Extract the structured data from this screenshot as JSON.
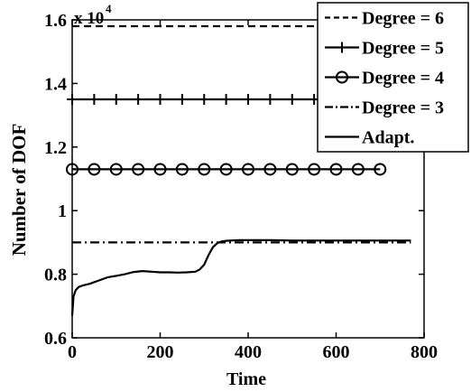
{
  "chart_data": {
    "type": "line",
    "xlabel": "Time",
    "ylabel": "Number of DOF",
    "xlim": [
      0,
      800
    ],
    "ylim": [
      0.6,
      1.6
    ],
    "y_multiplier_base": "x 10",
    "y_multiplier_exponent": "4",
    "x_ticks": [
      0,
      200,
      400,
      600,
      800
    ],
    "x_tick_labels": [
      "0",
      "200",
      "400",
      "600",
      "800"
    ],
    "y_ticks": [
      0.6,
      0.8,
      1.0,
      1.2,
      1.4,
      1.6
    ],
    "y_tick_labels": [
      "0.6",
      "0.8",
      "1",
      "1.2",
      "1.4",
      "1.6"
    ],
    "grid": false,
    "legend_position": "top-right",
    "series": [
      {
        "name": "Degree = 6",
        "style": "dashed",
        "marker": "none",
        "x": [
          0,
          770
        ],
        "y": [
          1.58,
          1.58
        ]
      },
      {
        "name": "Degree = 5",
        "style": "solid",
        "marker": "plus",
        "x": [
          0,
          770
        ],
        "y": [
          1.35,
          1.35
        ]
      },
      {
        "name": "Degree = 4",
        "style": "solid",
        "marker": "circle",
        "x": [
          0,
          700
        ],
        "y": [
          1.13,
          1.13
        ]
      },
      {
        "name": "Degree = 3",
        "style": "dashdot",
        "marker": "none",
        "x": [
          0,
          770
        ],
        "y": [
          0.9,
          0.9
        ]
      },
      {
        "name": "Adapt.",
        "style": "solid",
        "marker": "none",
        "x": [
          0,
          3,
          8,
          15,
          25,
          40,
          60,
          80,
          100,
          120,
          140,
          160,
          180,
          200,
          220,
          240,
          260,
          280,
          290,
          300,
          310,
          320,
          330,
          340,
          350,
          360,
          380,
          400,
          450,
          500,
          550,
          600,
          650,
          700,
          770
        ],
        "y": [
          0.67,
          0.73,
          0.75,
          0.76,
          0.765,
          0.77,
          0.78,
          0.79,
          0.795,
          0.8,
          0.807,
          0.81,
          0.808,
          0.806,
          0.806,
          0.805,
          0.806,
          0.808,
          0.815,
          0.83,
          0.86,
          0.885,
          0.898,
          0.903,
          0.905,
          0.906,
          0.907,
          0.907,
          0.907,
          0.906,
          0.906,
          0.906,
          0.906,
          0.906,
          0.906
        ]
      }
    ]
  },
  "colors": {
    "line": "#000000",
    "background": "#ffffff"
  }
}
